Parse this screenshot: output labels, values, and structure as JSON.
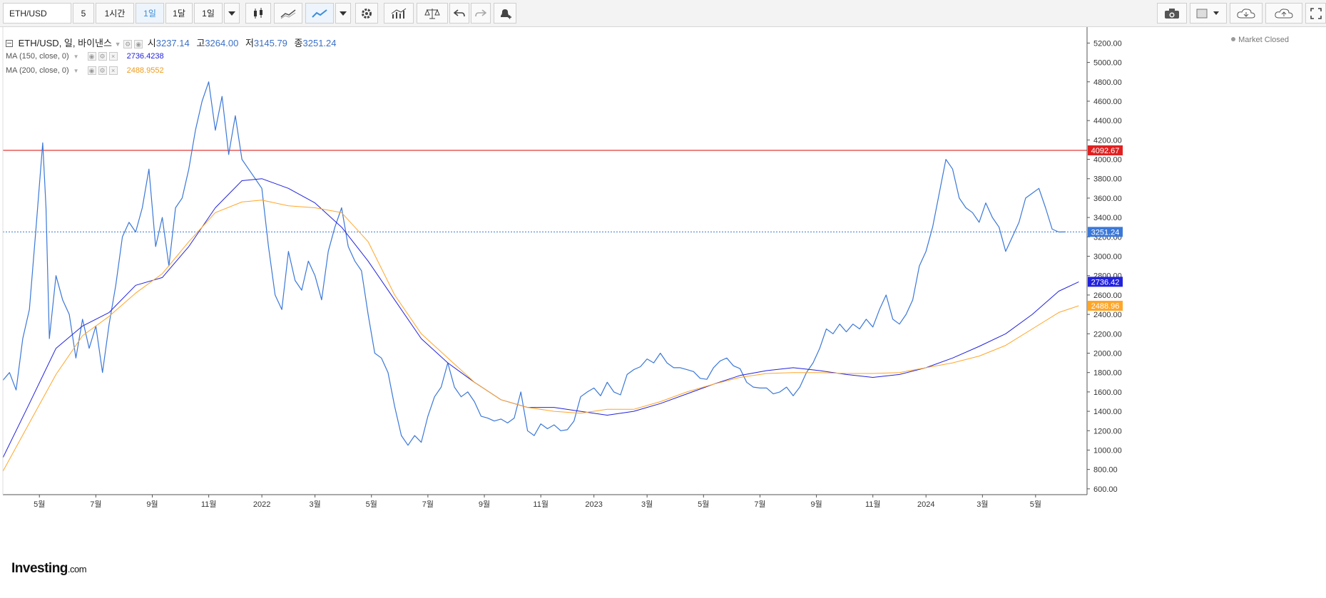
{
  "toolbar": {
    "symbol": "ETH/USD",
    "intervals": [
      "5",
      "1시간",
      "1일",
      "1달",
      "1일"
    ],
    "active_interval_index": 2
  },
  "legend": {
    "symbol": "ETH/USD",
    "period": "일",
    "exchange": "바이낸스",
    "open_label": "시",
    "open": "3237.14",
    "high_label": "고",
    "high": "3264.00",
    "low_label": "저",
    "low": "3145.79",
    "close_label": "종",
    "close": "3251.24",
    "ma150_label": "MA (150, close, 0)",
    "ma150_value": "2736.4238",
    "ma200_label": "MA (200, close, 0)",
    "ma200_value": "2488.9552"
  },
  "status": "Market Closed",
  "logo": {
    "main": "Investing",
    "suffix": ".com"
  },
  "colors": {
    "price": "#3b78d8",
    "ma150": "#2222dd",
    "ma200": "#ffa629",
    "resistance": "#e02020",
    "last_price": "#3b78d8"
  },
  "chart_data": {
    "type": "line",
    "title": "ETH/USD",
    "ylim": [
      540,
      5350
    ],
    "xlim": [
      2021.22,
      2024.47
    ],
    "y_ticks": [
      "5200.00",
      "5000.00",
      "4800.00",
      "4600.00",
      "4400.00",
      "4200.00",
      "4000.00",
      "3800.00",
      "3600.00",
      "3400.00",
      "3200.00",
      "3000.00",
      "2800.00",
      "2600.00",
      "2400.00",
      "2200.00",
      "2000.00",
      "1800.00",
      "1600.00",
      "1400.00",
      "1200.00",
      "1000.00",
      "800.00",
      "600.00"
    ],
    "x_ticks": [
      {
        "label": "5월",
        "x": 2021.33
      },
      {
        "label": "7월",
        "x": 2021.5
      },
      {
        "label": "9월",
        "x": 2021.67
      },
      {
        "label": "11월",
        "x": 2021.84
      },
      {
        "label": "2022",
        "x": 2022.0
      },
      {
        "label": "3월",
        "x": 2022.16
      },
      {
        "label": "5월",
        "x": 2022.33
      },
      {
        "label": "7월",
        "x": 2022.5
      },
      {
        "label": "9월",
        "x": 2022.67
      },
      {
        "label": "11월",
        "x": 2022.84
      },
      {
        "label": "2023",
        "x": 2023.0
      },
      {
        "label": "3월",
        "x": 2023.16
      },
      {
        "label": "5월",
        "x": 2023.33
      },
      {
        "label": "7월",
        "x": 2023.5
      },
      {
        "label": "9월",
        "x": 2023.67
      },
      {
        "label": "11월",
        "x": 2023.84
      },
      {
        "label": "2024",
        "x": 2024.0
      },
      {
        "label": "3월",
        "x": 2024.17
      },
      {
        "label": "5월",
        "x": 2024.33
      }
    ],
    "series": [
      {
        "name": "ETH/USD",
        "data": [
          [
            2021.22,
            1720
          ],
          [
            2021.24,
            1800
          ],
          [
            2021.26,
            1620
          ],
          [
            2021.28,
            2150
          ],
          [
            2021.3,
            2450
          ],
          [
            2021.32,
            3300
          ],
          [
            2021.34,
            4170
          ],
          [
            2021.35,
            3500
          ],
          [
            2021.36,
            2150
          ],
          [
            2021.38,
            2800
          ],
          [
            2021.4,
            2550
          ],
          [
            2021.42,
            2400
          ],
          [
            2021.44,
            1950
          ],
          [
            2021.46,
            2350
          ],
          [
            2021.48,
            2050
          ],
          [
            2021.5,
            2280
          ],
          [
            2021.52,
            1800
          ],
          [
            2021.54,
            2300
          ],
          [
            2021.56,
            2700
          ],
          [
            2021.58,
            3200
          ],
          [
            2021.6,
            3350
          ],
          [
            2021.62,
            3250
          ],
          [
            2021.64,
            3500
          ],
          [
            2021.66,
            3900
          ],
          [
            2021.68,
            3100
          ],
          [
            2021.7,
            3400
          ],
          [
            2021.72,
            2900
          ],
          [
            2021.74,
            3500
          ],
          [
            2021.76,
            3600
          ],
          [
            2021.78,
            3900
          ],
          [
            2021.8,
            4300
          ],
          [
            2021.82,
            4600
          ],
          [
            2021.84,
            4800
          ],
          [
            2021.86,
            4300
          ],
          [
            2021.88,
            4650
          ],
          [
            2021.9,
            4050
          ],
          [
            2021.92,
            4450
          ],
          [
            2021.94,
            4000
          ],
          [
            2021.96,
            3900
          ],
          [
            2021.98,
            3800
          ],
          [
            2022.0,
            3700
          ],
          [
            2022.02,
            3100
          ],
          [
            2022.04,
            2600
          ],
          [
            2022.06,
            2450
          ],
          [
            2022.08,
            3050
          ],
          [
            2022.1,
            2750
          ],
          [
            2022.12,
            2650
          ],
          [
            2022.14,
            2950
          ],
          [
            2022.16,
            2800
          ],
          [
            2022.18,
            2550
          ],
          [
            2022.2,
            3050
          ],
          [
            2022.22,
            3300
          ],
          [
            2022.24,
            3500
          ],
          [
            2022.26,
            3100
          ],
          [
            2022.28,
            2950
          ],
          [
            2022.3,
            2850
          ],
          [
            2022.32,
            2400
          ],
          [
            2022.34,
            2000
          ],
          [
            2022.36,
            1950
          ],
          [
            2022.38,
            1800
          ],
          [
            2022.4,
            1450
          ],
          [
            2022.42,
            1150
          ],
          [
            2022.44,
            1050
          ],
          [
            2022.46,
            1150
          ],
          [
            2022.48,
            1080
          ],
          [
            2022.5,
            1350
          ],
          [
            2022.52,
            1550
          ],
          [
            2022.54,
            1650
          ],
          [
            2022.56,
            1900
          ],
          [
            2022.58,
            1650
          ],
          [
            2022.6,
            1550
          ],
          [
            2022.62,
            1600
          ],
          [
            2022.64,
            1500
          ],
          [
            2022.66,
            1350
          ],
          [
            2022.68,
            1330
          ],
          [
            2022.7,
            1300
          ],
          [
            2022.72,
            1320
          ],
          [
            2022.74,
            1280
          ],
          [
            2022.76,
            1330
          ],
          [
            2022.78,
            1600
          ],
          [
            2022.8,
            1200
          ],
          [
            2022.82,
            1150
          ],
          [
            2022.84,
            1270
          ],
          [
            2022.86,
            1220
          ],
          [
            2022.88,
            1260
          ],
          [
            2022.9,
            1200
          ],
          [
            2022.92,
            1210
          ],
          [
            2022.94,
            1300
          ],
          [
            2022.96,
            1550
          ],
          [
            2022.98,
            1600
          ],
          [
            2023.0,
            1640
          ],
          [
            2023.02,
            1560
          ],
          [
            2023.04,
            1700
          ],
          [
            2023.06,
            1600
          ],
          [
            2023.08,
            1570
          ],
          [
            2023.1,
            1780
          ],
          [
            2023.12,
            1830
          ],
          [
            2023.14,
            1860
          ],
          [
            2023.16,
            1940
          ],
          [
            2023.18,
            1900
          ],
          [
            2023.2,
            2000
          ],
          [
            2023.22,
            1900
          ],
          [
            2023.24,
            1850
          ],
          [
            2023.26,
            1850
          ],
          [
            2023.28,
            1830
          ],
          [
            2023.3,
            1810
          ],
          [
            2023.32,
            1740
          ],
          [
            2023.34,
            1730
          ],
          [
            2023.36,
            1850
          ],
          [
            2023.38,
            1920
          ],
          [
            2023.4,
            1950
          ],
          [
            2023.42,
            1870
          ],
          [
            2023.44,
            1840
          ],
          [
            2023.46,
            1700
          ],
          [
            2023.48,
            1650
          ],
          [
            2023.5,
            1640
          ],
          [
            2023.52,
            1640
          ],
          [
            2023.54,
            1580
          ],
          [
            2023.56,
            1600
          ],
          [
            2023.58,
            1650
          ],
          [
            2023.6,
            1560
          ],
          [
            2023.62,
            1650
          ],
          [
            2023.64,
            1800
          ],
          [
            2023.66,
            1900
          ],
          [
            2023.68,
            2050
          ],
          [
            2023.7,
            2250
          ],
          [
            2023.72,
            2200
          ],
          [
            2023.74,
            2300
          ],
          [
            2023.76,
            2220
          ],
          [
            2023.78,
            2300
          ],
          [
            2023.8,
            2250
          ],
          [
            2023.82,
            2350
          ],
          [
            2023.84,
            2270
          ],
          [
            2023.86,
            2450
          ],
          [
            2023.88,
            2600
          ],
          [
            2023.9,
            2350
          ],
          [
            2023.92,
            2300
          ],
          [
            2023.94,
            2400
          ],
          [
            2023.96,
            2550
          ],
          [
            2023.98,
            2900
          ],
          [
            2024.0,
            3050
          ],
          [
            2024.02,
            3300
          ],
          [
            2024.04,
            3650
          ],
          [
            2024.06,
            4000
          ],
          [
            2024.08,
            3900
          ],
          [
            2024.1,
            3600
          ],
          [
            2024.12,
            3500
          ],
          [
            2024.14,
            3450
          ],
          [
            2024.16,
            3350
          ],
          [
            2024.18,
            3550
          ],
          [
            2024.2,
            3400
          ],
          [
            2024.22,
            3300
          ],
          [
            2024.24,
            3050
          ],
          [
            2024.26,
            3200
          ],
          [
            2024.28,
            3350
          ],
          [
            2024.3,
            3600
          ],
          [
            2024.32,
            3650
          ],
          [
            2024.34,
            3700
          ],
          [
            2024.36,
            3500
          ],
          [
            2024.38,
            3280
          ],
          [
            2024.4,
            3250
          ],
          [
            2024.42,
            3251
          ]
        ]
      },
      {
        "name": "MA (150, close, 0)",
        "data": [
          [
            2021.22,
            920
          ],
          [
            2021.3,
            1480
          ],
          [
            2021.38,
            2050
          ],
          [
            2021.46,
            2280
          ],
          [
            2021.54,
            2420
          ],
          [
            2021.62,
            2700
          ],
          [
            2021.7,
            2780
          ],
          [
            2021.78,
            3100
          ],
          [
            2021.86,
            3500
          ],
          [
            2021.94,
            3780
          ],
          [
            2022.0,
            3800
          ],
          [
            2022.08,
            3700
          ],
          [
            2022.16,
            3550
          ],
          [
            2022.24,
            3300
          ],
          [
            2022.32,
            2950
          ],
          [
            2022.4,
            2550
          ],
          [
            2022.48,
            2150
          ],
          [
            2022.56,
            1900
          ],
          [
            2022.64,
            1700
          ],
          [
            2022.72,
            1520
          ],
          [
            2022.8,
            1440
          ],
          [
            2022.88,
            1440
          ],
          [
            2022.96,
            1400
          ],
          [
            2023.04,
            1360
          ],
          [
            2023.12,
            1400
          ],
          [
            2023.2,
            1480
          ],
          [
            2023.28,
            1580
          ],
          [
            2023.36,
            1680
          ],
          [
            2023.44,
            1770
          ],
          [
            2023.52,
            1820
          ],
          [
            2023.6,
            1850
          ],
          [
            2023.68,
            1820
          ],
          [
            2023.76,
            1780
          ],
          [
            2023.84,
            1750
          ],
          [
            2023.92,
            1780
          ],
          [
            2024.0,
            1850
          ],
          [
            2024.08,
            1950
          ],
          [
            2024.16,
            2070
          ],
          [
            2024.24,
            2200
          ],
          [
            2024.32,
            2400
          ],
          [
            2024.4,
            2640
          ],
          [
            2024.46,
            2736
          ]
        ]
      },
      {
        "name": "MA (200, close, 0)",
        "data": [
          [
            2021.22,
            780
          ],
          [
            2021.3,
            1280
          ],
          [
            2021.38,
            1780
          ],
          [
            2021.46,
            2180
          ],
          [
            2021.54,
            2380
          ],
          [
            2021.62,
            2620
          ],
          [
            2021.7,
            2820
          ],
          [
            2021.78,
            3150
          ],
          [
            2021.86,
            3450
          ],
          [
            2021.94,
            3560
          ],
          [
            2022.0,
            3580
          ],
          [
            2022.08,
            3520
          ],
          [
            2022.16,
            3500
          ],
          [
            2022.24,
            3450
          ],
          [
            2022.32,
            3150
          ],
          [
            2022.4,
            2600
          ],
          [
            2022.48,
            2200
          ],
          [
            2022.56,
            1950
          ],
          [
            2022.64,
            1700
          ],
          [
            2022.72,
            1520
          ],
          [
            2022.8,
            1440
          ],
          [
            2022.88,
            1400
          ],
          [
            2022.96,
            1380
          ],
          [
            2023.04,
            1420
          ],
          [
            2023.12,
            1420
          ],
          [
            2023.2,
            1500
          ],
          [
            2023.28,
            1600
          ],
          [
            2023.36,
            1680
          ],
          [
            2023.44,
            1750
          ],
          [
            2023.52,
            1790
          ],
          [
            2023.6,
            1800
          ],
          [
            2023.68,
            1800
          ],
          [
            2023.76,
            1790
          ],
          [
            2023.84,
            1790
          ],
          [
            2023.92,
            1800
          ],
          [
            2024.0,
            1850
          ],
          [
            2024.08,
            1900
          ],
          [
            2024.16,
            1970
          ],
          [
            2024.24,
            2080
          ],
          [
            2024.32,
            2250
          ],
          [
            2024.4,
            2420
          ],
          [
            2024.46,
            2489
          ]
        ]
      }
    ],
    "horizontal_lines": [
      {
        "y": 4092.67,
        "label": "4092.67",
        "style": "solid",
        "color": "#e02020"
      },
      {
        "y": 3251.24,
        "label": "3251.24",
        "style": "dotted",
        "color": "#3b78d8"
      }
    ],
    "price_tags": [
      {
        "y": 4092.67,
        "label": "4092.67",
        "color": "#e02020"
      },
      {
        "y": 3251.24,
        "label": "3251.24",
        "color": "#3b78d8"
      },
      {
        "y": 2736.42,
        "label": "2736.42",
        "color": "#2222dd"
      },
      {
        "y": 2488.96,
        "label": "2488.96",
        "color": "#ffa629"
      }
    ],
    "grid": false,
    "legend_position": "top-left"
  }
}
